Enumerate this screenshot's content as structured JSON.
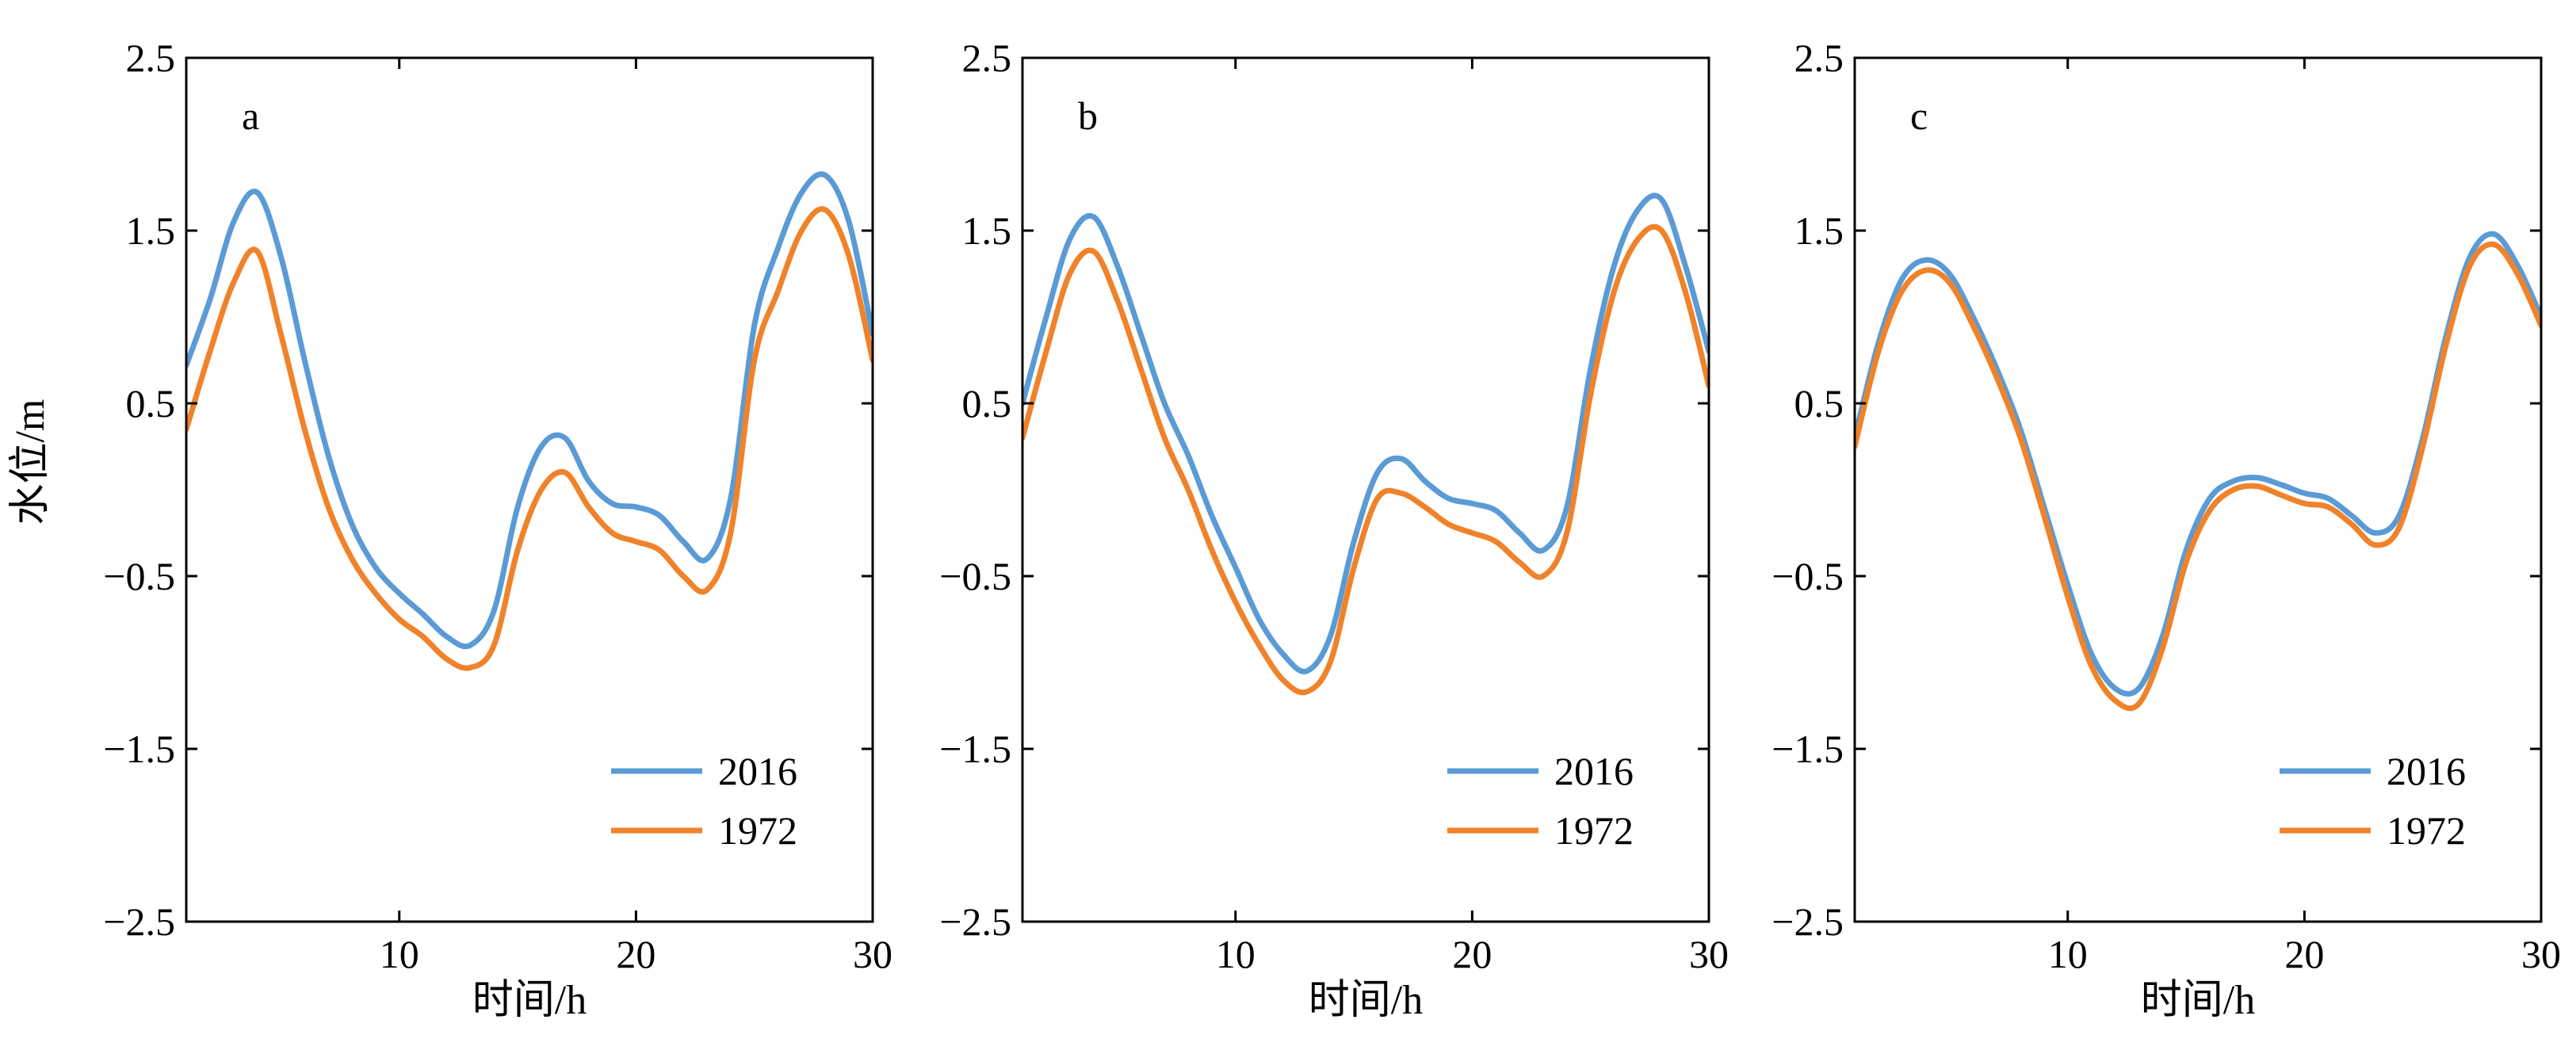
{
  "colors": {
    "series_2016": "#5b9bd5",
    "series_1972": "#f0822a",
    "axis": "#000000"
  },
  "chart_data": [
    {
      "type": "line",
      "panel_label": "a",
      "xlabel": "时间/h",
      "ylabel": "水位/m",
      "xlim": [
        1,
        30
      ],
      "ylim": [
        -2.5,
        2.5
      ],
      "xticks": [
        10,
        20,
        30
      ],
      "xtick_labels": [
        "10",
        "20",
        "30"
      ],
      "yticks": [
        2.5,
        1.5,
        0.5,
        -0.5,
        -1.5,
        -2.5
      ],
      "ytick_labels": [
        "2.5",
        "1.5",
        "0.5",
        "−0.5",
        "−1.5",
        "−2.5"
      ],
      "legend_position": "bottom-right",
      "grid": false,
      "x": [
        1,
        2,
        3,
        4,
        5,
        6,
        7,
        8,
        9,
        10,
        11,
        12,
        13,
        14,
        15,
        16,
        17,
        18,
        19,
        20,
        21,
        22,
        23,
        24,
        25,
        26,
        27,
        28,
        29,
        30
      ],
      "series": [
        {
          "name": "2016",
          "values": [
            0.72,
            1.1,
            1.55,
            1.72,
            1.35,
            0.75,
            0.2,
            -0.2,
            -0.45,
            -0.6,
            -0.72,
            -0.85,
            -0.9,
            -0.7,
            -0.1,
            0.25,
            0.3,
            0.05,
            -0.08,
            -0.1,
            -0.15,
            -0.3,
            -0.4,
            -0.05,
            0.95,
            1.4,
            1.72,
            1.82,
            1.55,
            0.9
          ]
        },
        {
          "name": "1972",
          "values": [
            0.35,
            0.8,
            1.2,
            1.38,
            0.9,
            0.35,
            -0.1,
            -0.4,
            -0.6,
            -0.75,
            -0.85,
            -0.98,
            -1.03,
            -0.9,
            -0.35,
            0.0,
            0.1,
            -0.1,
            -0.25,
            -0.3,
            -0.35,
            -0.5,
            -0.58,
            -0.25,
            0.75,
            1.15,
            1.5,
            1.62,
            1.35,
            0.75
          ]
        }
      ]
    },
    {
      "type": "line",
      "panel_label": "b",
      "xlabel": "时间/h",
      "ylabel": "",
      "xlim": [
        1,
        30
      ],
      "ylim": [
        -2.5,
        2.5
      ],
      "xticks": [
        10,
        20,
        30
      ],
      "xtick_labels": [
        "10",
        "20",
        "30"
      ],
      "yticks": [
        2.5,
        1.5,
        0.5,
        -0.5,
        -1.5,
        -2.5
      ],
      "ytick_labels": [
        "2.5",
        "1.5",
        "0.5",
        "−0.5",
        "−1.5",
        "−2.5"
      ],
      "legend_position": "bottom-right",
      "grid": false,
      "x": [
        1,
        2,
        3,
        4,
        5,
        6,
        7,
        8,
        9,
        10,
        11,
        12,
        13,
        14,
        15,
        16,
        17,
        18,
        19,
        20,
        21,
        22,
        23,
        24,
        25,
        26,
        27,
        28,
        29,
        30
      ],
      "series": [
        {
          "name": "2016",
          "values": [
            0.5,
            1.0,
            1.45,
            1.58,
            1.3,
            0.9,
            0.5,
            0.2,
            -0.15,
            -0.45,
            -0.75,
            -0.95,
            -1.05,
            -0.85,
            -0.3,
            0.1,
            0.18,
            0.05,
            -0.05,
            -0.08,
            -0.12,
            -0.25,
            -0.35,
            -0.1,
            0.7,
            1.3,
            1.62,
            1.68,
            1.3,
            0.8
          ]
        },
        {
          "name": "1972",
          "values": [
            0.3,
            0.8,
            1.25,
            1.38,
            1.1,
            0.7,
            0.3,
            0.0,
            -0.35,
            -0.65,
            -0.9,
            -1.1,
            -1.17,
            -1.0,
            -0.45,
            -0.05,
            -0.02,
            -0.1,
            -0.2,
            -0.25,
            -0.3,
            -0.42,
            -0.5,
            -0.25,
            0.55,
            1.15,
            1.45,
            1.5,
            1.15,
            0.6
          ]
        }
      ]
    },
    {
      "type": "line",
      "panel_label": "c",
      "xlabel": "时间/h",
      "ylabel": "",
      "xlim": [
        1,
        30
      ],
      "ylim": [
        -2.5,
        2.5
      ],
      "xticks": [
        10,
        20,
        30
      ],
      "xtick_labels": [
        "10",
        "20",
        "30"
      ],
      "yticks": [
        2.5,
        1.5,
        0.5,
        -0.5,
        -1.5,
        -2.5
      ],
      "ytick_labels": [
        "2.5",
        "1.5",
        "0.5",
        "−0.5",
        "−1.5",
        "−2.5"
      ],
      "legend_position": "bottom-right",
      "grid": false,
      "x": [
        1,
        2,
        3,
        4,
        5,
        6,
        7,
        8,
        9,
        10,
        11,
        12,
        13,
        14,
        15,
        16,
        17,
        18,
        19,
        20,
        21,
        22,
        23,
        24,
        25,
        26,
        27,
        28,
        29,
        30
      ],
      "series": [
        {
          "name": "2016",
          "values": [
            0.3,
            0.85,
            1.22,
            1.33,
            1.25,
            1.0,
            0.7,
            0.35,
            -0.1,
            -0.55,
            -0.95,
            -1.15,
            -1.15,
            -0.85,
            -0.35,
            -0.05,
            0.05,
            0.07,
            0.03,
            -0.02,
            -0.05,
            -0.15,
            -0.25,
            -0.15,
            0.3,
            0.9,
            1.35,
            1.48,
            1.3,
            1.0
          ]
        },
        {
          "name": "1972",
          "values": [
            0.25,
            0.8,
            1.15,
            1.27,
            1.2,
            0.95,
            0.65,
            0.3,
            -0.15,
            -0.62,
            -1.02,
            -1.22,
            -1.24,
            -0.92,
            -0.42,
            -0.12,
            0.0,
            0.02,
            -0.03,
            -0.08,
            -0.1,
            -0.2,
            -0.32,
            -0.22,
            0.25,
            0.85,
            1.3,
            1.42,
            1.25,
            0.95
          ]
        }
      ]
    }
  ]
}
